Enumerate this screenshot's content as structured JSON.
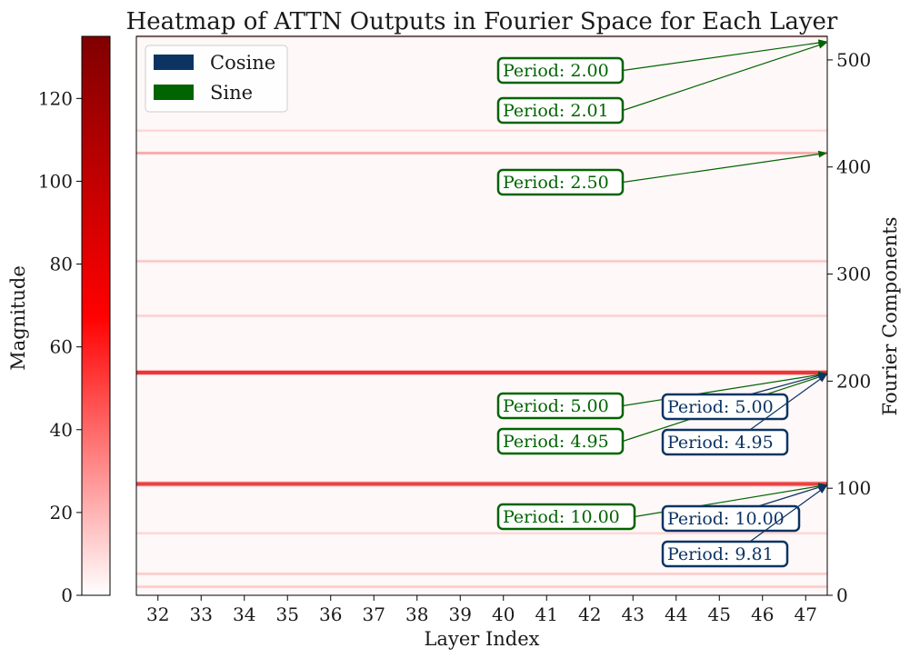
{
  "chart_data": {
    "type": "heatmap",
    "title": "Heatmap of ATTN Outputs in Fourier Space for Each Layer",
    "xlabel": "Layer Index",
    "ylabel": "Fourier Components",
    "x_ticks": [
      "32",
      "33",
      "34",
      "35",
      "36",
      "37",
      "38",
      "39",
      "40",
      "41",
      "42",
      "43",
      "44",
      "45",
      "46",
      "47"
    ],
    "x_range": [
      31.5,
      47.5
    ],
    "y_ticks": [
      0,
      100,
      200,
      300,
      400,
      500
    ],
    "y_range": [
      0,
      522
    ],
    "y_axis_side": "right",
    "colorbar": {
      "label": "Magnitude",
      "ticks": [
        0,
        20,
        40,
        60,
        80,
        100,
        120
      ],
      "range": [
        0,
        135
      ],
      "colormap": "white-to-dark-red",
      "side": "left"
    },
    "legend": {
      "placement": "top-left",
      "entries": [
        {
          "label": "Cosine",
          "color": "#0b3463"
        },
        {
          "label": "Sine",
          "color": "#006400"
        }
      ]
    },
    "bands": [
      {
        "component": 522,
        "peak": 18
      },
      {
        "component": 434,
        "peak": 10
      },
      {
        "component": 413,
        "peak": 28
      },
      {
        "component": 312,
        "peak": 15
      },
      {
        "component": 261,
        "peak": 12
      },
      {
        "component": 208,
        "peak": 65
      },
      {
        "component": 104,
        "peak": 60
      },
      {
        "component": 58,
        "peak": 10
      },
      {
        "component": 20,
        "peak": 14
      },
      {
        "component": 8,
        "peak": 14
      }
    ],
    "annotations": [
      {
        "text": "Period: 2.00",
        "series": "Sine",
        "target": 517
      },
      {
        "text": "Period: 2.01",
        "series": "Sine",
        "target": 516
      },
      {
        "text": "Period: 2.50",
        "series": "Sine",
        "target": 413
      },
      {
        "text": "Period: 5.00",
        "series": "Sine",
        "target": 207
      },
      {
        "text": "Period: 4.95",
        "series": "Sine",
        "target": 206
      },
      {
        "text": "Period: 5.00",
        "series": "Cosine",
        "target": 207
      },
      {
        "text": "Period: 4.95",
        "series": "Cosine",
        "target": 206
      },
      {
        "text": "Period: 10.00",
        "series": "Sine",
        "target": 103
      },
      {
        "text": "Period: 10.00",
        "series": "Cosine",
        "target": 103
      },
      {
        "text": "Period: 9.81",
        "series": "Cosine",
        "target": 102
      }
    ]
  }
}
